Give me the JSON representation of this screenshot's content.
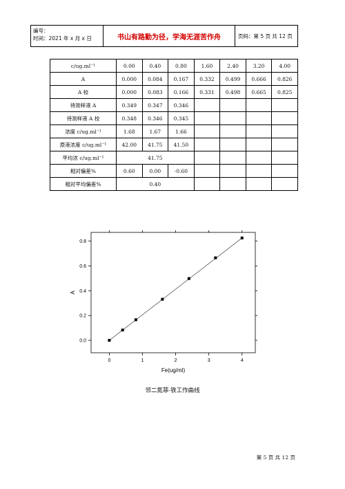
{
  "header": {
    "number_label": "编号：",
    "time_label": "时间：2021 年 x 月 x 日",
    "motto": "书山有路勤为径，学海无涯苦作舟",
    "page_info": "页码：第 5 页  共 12 页"
  },
  "table": {
    "rows": [
      {
        "label": "c/ug.ml⁻¹",
        "cells": [
          "0.00",
          "0.40",
          "0.80",
          "1.60",
          "2.40",
          "3.20",
          "4.00"
        ]
      },
      {
        "label": "A",
        "cells": [
          "0.000",
          "0.084",
          "0.167",
          "0.332",
          "0.499",
          "0.666",
          "0.826"
        ]
      },
      {
        "label": "A 校",
        "cells": [
          "0.000",
          "0.083",
          "0.166",
          "0.331",
          "0.498",
          "0.665",
          "0.825"
        ]
      },
      {
        "label": "待测样液 A",
        "cells": [
          "0.349",
          "0.347",
          "0.346",
          "",
          "",
          "",
          ""
        ]
      },
      {
        "label": "待测样液 A 校",
        "cells": [
          "0.348",
          "0.346",
          "0.345",
          "",
          "",
          "",
          ""
        ]
      },
      {
        "label": "浓度 c/ug.ml⁻¹",
        "cells": [
          "1.68",
          "1.67",
          "1.66",
          "",
          "",
          "",
          ""
        ]
      },
      {
        "label": "原液浓度 c/ug.ml⁻¹",
        "cells": [
          "42.00",
          "41.75",
          "41.50",
          "",
          "",
          "",
          ""
        ]
      }
    ],
    "avg_label": "平均浓 c/ug.ml⁻¹",
    "avg_value": "41.75",
    "dev_label": "相对偏差%",
    "dev_cells": [
      "0.60",
      "0.00",
      "-0.60"
    ],
    "avg_dev_label": "相对平均偏差%",
    "avg_dev_value": "0.40"
  },
  "chart_data": {
    "type": "line",
    "xlabel": "Fe(ug/ml)",
    "ylabel": "A",
    "xlim": [
      -0.55,
      4.4
    ],
    "ylim": [
      -0.1,
      0.87
    ],
    "x_ticks": [
      "0",
      "1",
      "2",
      "3",
      "4"
    ],
    "y_ticks": [
      "0.0",
      "0.2",
      "0.4",
      "0.6",
      "0.8"
    ],
    "series": [
      {
        "x": [
          0.0,
          0.4,
          0.8,
          1.6,
          2.4,
          3.2,
          4.0
        ],
        "y": [
          0.0,
          0.083,
          0.166,
          0.331,
          0.498,
          0.665,
          0.825
        ]
      }
    ],
    "fit_line": {
      "x": [
        0,
        4
      ],
      "y": [
        0.0,
        0.825
      ]
    }
  },
  "caption": "邻二氮菲-铁工作曲线",
  "footer": "第 5 页  共 12 页"
}
